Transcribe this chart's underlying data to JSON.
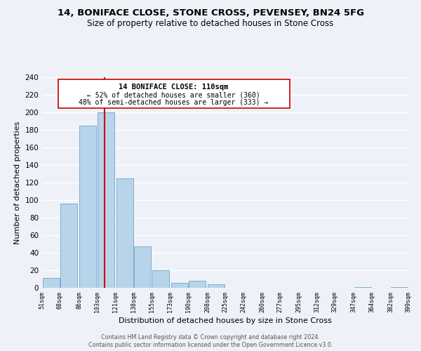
{
  "title": "14, BONIFACE CLOSE, STONE CROSS, PEVENSEY, BN24 5FG",
  "subtitle": "Size of property relative to detached houses in Stone Cross",
  "xlabel": "Distribution of detached houses by size in Stone Cross",
  "ylabel": "Number of detached properties",
  "bar_color": "#b8d4ea",
  "bar_edge_color": "#7aaed0",
  "vline_color": "#cc0000",
  "vline_x": 110,
  "annotation_title": "14 BONIFACE CLOSE: 110sqm",
  "annotation_line1": "← 52% of detached houses are smaller (360)",
  "annotation_line2": "48% of semi-detached houses are larger (333) →",
  "annotation_box_color": "#ffffff",
  "annotation_box_edge": "#cc0000",
  "bins_left": [
    51,
    68,
    86,
    103,
    121,
    138,
    155,
    173,
    190,
    208,
    225,
    242,
    260,
    277,
    295,
    312,
    329,
    347,
    364,
    382
  ],
  "bin_width": 17,
  "bin_heights": [
    11,
    96,
    185,
    200,
    125,
    47,
    20,
    6,
    8,
    4,
    0,
    0,
    0,
    0,
    0,
    0,
    0,
    1,
    0,
    1
  ],
  "xlim_left": 51,
  "xlim_right": 399,
  "ylim_top": 240,
  "yticks": [
    0,
    20,
    40,
    60,
    80,
    100,
    120,
    140,
    160,
    180,
    200,
    220,
    240
  ],
  "tick_labels": [
    "51sqm",
    "68sqm",
    "86sqm",
    "103sqm",
    "121sqm",
    "138sqm",
    "155sqm",
    "173sqm",
    "190sqm",
    "208sqm",
    "225sqm",
    "242sqm",
    "260sqm",
    "277sqm",
    "295sqm",
    "312sqm",
    "329sqm",
    "347sqm",
    "364sqm",
    "382sqm",
    "399sqm"
  ],
  "tick_positions": [
    51,
    68,
    86,
    103,
    121,
    138,
    155,
    173,
    190,
    208,
    225,
    242,
    260,
    277,
    295,
    312,
    329,
    347,
    364,
    382,
    399
  ],
  "footer1": "Contains HM Land Registry data © Crown copyright and database right 2024.",
  "footer2": "Contains public sector information licensed under the Open Government Licence v3.0.",
  "background_color": "#eef2f8",
  "grid_color": "#ffffff"
}
